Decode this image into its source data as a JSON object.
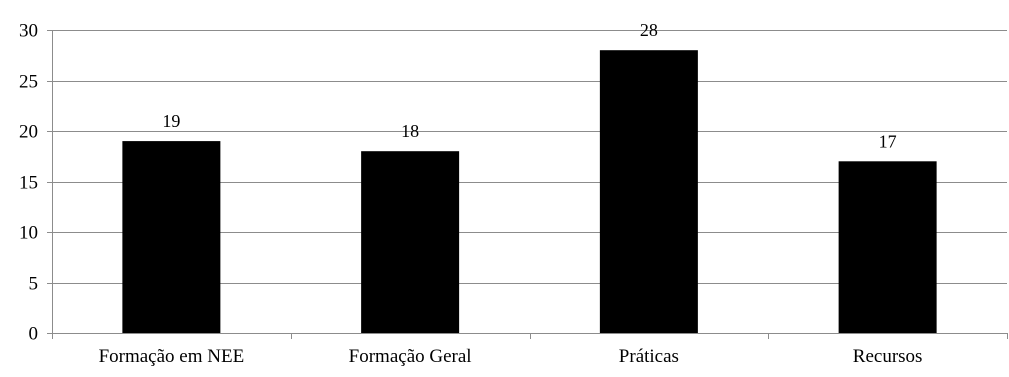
{
  "chart_data": {
    "type": "bar",
    "categories": [
      "Formação em NEE",
      "Formação Geral",
      "Práticas",
      "Recursos"
    ],
    "values": [
      19,
      18,
      28,
      17
    ],
    "data_labels": [
      "19",
      "18",
      "28",
      "17"
    ],
    "y_ticks": [
      "0",
      "5",
      "10",
      "15",
      "20",
      "25",
      "30"
    ],
    "ylim": [
      0,
      30
    ],
    "ystep": 5,
    "title": "",
    "xlabel": "",
    "ylabel": "",
    "grid": true,
    "legend": "none",
    "colors": {
      "bar": "#000000",
      "grid": "#8c8c8c",
      "axis": "#8c8c8c",
      "text": "#000000"
    }
  }
}
